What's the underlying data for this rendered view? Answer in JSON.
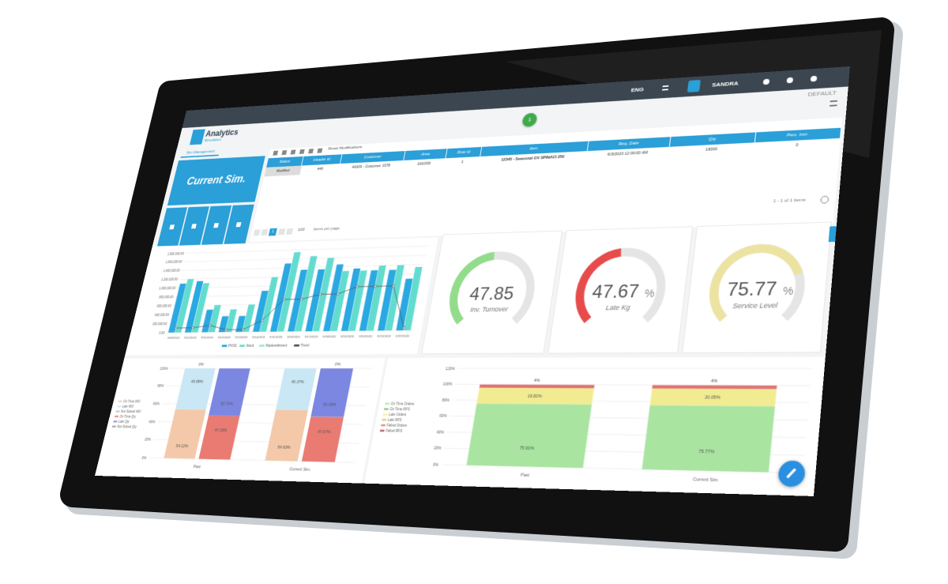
{
  "app": {
    "title": "Analytics",
    "subtitle": "Simulation",
    "tab": "Sim Management",
    "lang": "ENG",
    "user": "SANDRA",
    "profile": "DEFAULT",
    "badge": "1"
  },
  "current_sim": "Current Sim.",
  "toolbar": {
    "reset": "Reset Modifications"
  },
  "table": {
    "columns": [
      "Status",
      "Header Id",
      "Customer",
      "Area",
      "Row Id",
      "Item",
      "Req. Date",
      "Qty",
      "Perc. Incr."
    ],
    "rows": [
      [
        "Modified",
        "449",
        "40009 - Customer 1578",
        "100/200",
        "1",
        "12345 - Seasonal GV SPINACI 250",
        "6/3/2020 12:00:00 AM",
        "16000",
        "0"
      ]
    ]
  },
  "pager": {
    "page": "1",
    "page_size": "100",
    "per_page_label": "items per page",
    "summary": "1 - 1 of 1 items"
  },
  "gauges": [
    {
      "value": 47.85,
      "label": "Inv. Turnover",
      "color": "#93dc8c",
      "range": [
        0,
        100
      ]
    },
    {
      "value": 47.67,
      "unit": "%",
      "label": "Late Kg",
      "color": "#e84b4b",
      "range": [
        0,
        100
      ]
    },
    {
      "value": 75.77,
      "unit": "%",
      "label": "Service Level",
      "color": "#ece3a2",
      "range": [
        0,
        100
      ]
    }
  ],
  "chart_data": [
    {
      "type": "bar",
      "categories": [
        "9/08/2020",
        "9/10/2020",
        "9/11/2020",
        "9/12/2020",
        "9/13/2020",
        "9/14/2020",
        "9/15/2020",
        "9/16/2020",
        "9/17/2020",
        "9/18/2020",
        "9/19/2020",
        "9/20/2020",
        "9/21/2020",
        "9/22/2020"
      ],
      "series": [
        {
          "name": "PVOC",
          "type": "bar",
          "color": "#2aa8e2",
          "values": [
            1100000,
            1150000,
            500000,
            350000,
            350000,
            900000,
            1500000,
            1350000,
            1350000,
            1450000,
            1350000,
            1300000,
            1300000,
            1100000
          ]
        },
        {
          "name": "Stock",
          "type": "bar",
          "color": "#63dccf",
          "values": [
            1200000,
            1100000,
            600000,
            500000,
            600000,
            1200000,
            1750000,
            1650000,
            1600000,
            1300000,
            1300000,
            1400000,
            1400000,
            1350000
          ]
        },
        {
          "name": "Replenishment",
          "type": "bar",
          "color": "#9ee6e0",
          "values": [
            null,
            null,
            null,
            null,
            null,
            null,
            null,
            null,
            null,
            null,
            null,
            null,
            null,
            null
          ]
        },
        {
          "name": "Trend",
          "type": "line",
          "color": "#555555",
          "values": [
            100000,
            100000,
            150000,
            50000,
            50000,
            250000,
            700000,
            700000,
            800000,
            800000,
            950000,
            950000,
            950000,
            50000
          ]
        }
      ],
      "ylim": [
        0,
        1800000
      ],
      "yticks": [
        {
          "value": 0,
          "label": "0.00"
        },
        {
          "value": 200000,
          "label": "200,000.00"
        },
        {
          "value": 400000,
          "label": "400,000.00"
        },
        {
          "value": 600000,
          "label": "600,000.00"
        },
        {
          "value": 800000,
          "label": "800,000.00"
        },
        {
          "value": 1000000,
          "label": "1,000,000.00"
        },
        {
          "value": 1200000,
          "label": "1,200,000.00"
        },
        {
          "value": 1400000,
          "label": "1,400,000.00"
        },
        {
          "value": 1600000,
          "label": "1,600,000.00"
        },
        {
          "value": 1800000,
          "label": "1,800,000.00"
        }
      ],
      "grid": true
    },
    {
      "type": "stacked_bar",
      "categories": [
        "Past",
        "Current Sim."
      ],
      "series": [
        {
          "name": "On Time WO",
          "stack": "WO",
          "color": "#f3c9a9",
          "values": [
            54.12,
            54.63
          ],
          "value_labels": [
            "54.12%",
            "54.63%"
          ]
        },
        {
          "name": "Late WO",
          "stack": "WO",
          "color": "#c9e7f5",
          "values": [
            45.88,
            45.37
          ],
          "value_labels": [
            "45.88%",
            "45.37%"
          ]
        },
        {
          "name": "Not Solved WO",
          "stack": "WO",
          "color": "#bbbbbb",
          "values": [
            0,
            null
          ],
          "value_labels": [
            "0%",
            null
          ]
        },
        {
          "name": "On Time Qty",
          "stack": "Qty",
          "color": "#e97b73",
          "values": [
            47.29,
            47.67
          ],
          "value_labels": [
            "47.29%",
            "47.67%"
          ]
        },
        {
          "name": "Late Qty",
          "stack": "Qty",
          "color": "#7c87e1",
          "values": [
            52.71,
            52.33
          ],
          "value_labels": [
            "52.71%",
            "52.33%"
          ]
        },
        {
          "name": "Not Solved Qty",
          "stack": "Qty",
          "color": "#999999",
          "values": [
            null,
            0
          ],
          "value_labels": [
            null,
            "0%"
          ]
        }
      ],
      "ylim": [
        0,
        100
      ],
      "yticks": [
        {
          "value": 0,
          "label": "0%"
        },
        {
          "value": 20,
          "label": "20%"
        },
        {
          "value": 40,
          "label": "40%"
        },
        {
          "value": 60,
          "label": "60%"
        },
        {
          "value": 80,
          "label": "80%"
        },
        {
          "value": 100,
          "label": "100%"
        }
      ],
      "grid": true
    },
    {
      "type": "stacked_bar",
      "categories": [
        "Past",
        "Current Sim."
      ],
      "series": [
        {
          "name": "On Time Orders",
          "color": "#a9e4a1",
          "values": [
            75.91,
            75.77
          ],
          "value_labels": [
            "75.91%",
            "75.77%"
          ]
        },
        {
          "name": "On Time RFS",
          "color": "#6fc26a",
          "values": [
            null,
            null
          ]
        },
        {
          "name": "Late Orders",
          "color": "#f1ec92",
          "values": [
            19.82,
            20.05
          ],
          "value_labels": [
            "19.82%",
            "20.05%"
          ]
        },
        {
          "name": "Late RFS",
          "color": "#d8c94a",
          "values": [
            null,
            null
          ]
        },
        {
          "name": "Failed Orders",
          "color": "#e07272",
          "values": [
            4,
            4
          ],
          "value_labels": [
            "4%",
            "4%"
          ]
        },
        {
          "name": "Failed RFS",
          "color": "#b84040",
          "values": [
            null,
            null
          ]
        }
      ],
      "ylim": [
        0,
        120
      ],
      "yticks": [
        {
          "value": 0,
          "label": "0%"
        },
        {
          "value": 20,
          "label": "20%"
        },
        {
          "value": 40,
          "label": "40%"
        },
        {
          "value": 60,
          "label": "60%"
        },
        {
          "value": 80,
          "label": "80%"
        },
        {
          "value": 100,
          "label": "100%"
        },
        {
          "value": 120,
          "label": "120%"
        }
      ],
      "grid": true
    }
  ]
}
